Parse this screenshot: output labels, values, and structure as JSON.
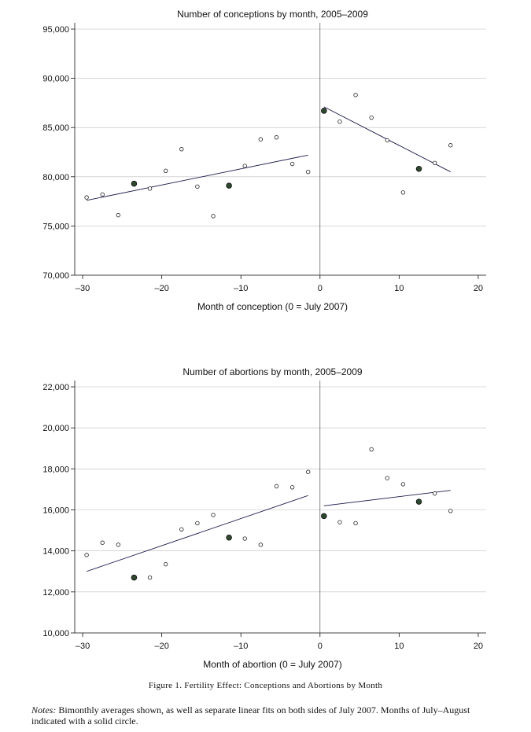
{
  "chart_data": [
    {
      "type": "scatter",
      "title": "Number of conceptions by month, 2005–2009",
      "xlabel": "Month of conception (0 = July 2007)",
      "ylabel": "",
      "xlim": [
        -31,
        21
      ],
      "ylim": [
        70000,
        95000
      ],
      "xticks": [
        -30,
        -20,
        -10,
        0,
        10,
        20
      ],
      "xtick_labels": [
        "–30",
        "–20",
        "–10",
        "0",
        "10",
        "20"
      ],
      "yticks": [
        70000,
        75000,
        80000,
        85000,
        90000,
        95000
      ],
      "ytick_labels": [
        "70,000",
        "75,000",
        "80,000",
        "85,000",
        "90,000",
        "95,000"
      ],
      "grid": true,
      "vline_x": 0,
      "points": [
        {
          "x": -29.5,
          "y": 77900,
          "filled": false
        },
        {
          "x": -27.5,
          "y": 78200,
          "filled": false
        },
        {
          "x": -25.5,
          "y": 76100,
          "filled": false
        },
        {
          "x": -23.5,
          "y": 79300,
          "filled": true
        },
        {
          "x": -21.5,
          "y": 78800,
          "filled": false
        },
        {
          "x": -19.5,
          "y": 80600,
          "filled": false
        },
        {
          "x": -17.5,
          "y": 82800,
          "filled": false
        },
        {
          "x": -15.5,
          "y": 79000,
          "filled": false
        },
        {
          "x": -13.5,
          "y": 76000,
          "filled": false
        },
        {
          "x": -11.5,
          "y": 79100,
          "filled": true
        },
        {
          "x": -9.5,
          "y": 81100,
          "filled": false
        },
        {
          "x": -7.5,
          "y": 83800,
          "filled": false
        },
        {
          "x": -5.5,
          "y": 84000,
          "filled": false
        },
        {
          "x": -3.5,
          "y": 81300,
          "filled": false
        },
        {
          "x": -1.5,
          "y": 80500,
          "filled": false
        },
        {
          "x": 0.5,
          "y": 86700,
          "filled": true
        },
        {
          "x": 2.5,
          "y": 85600,
          "filled": false
        },
        {
          "x": 4.5,
          "y": 88300,
          "filled": false
        },
        {
          "x": 6.5,
          "y": 86000,
          "filled": false
        },
        {
          "x": 8.5,
          "y": 83700,
          "filled": false
        },
        {
          "x": 10.5,
          "y": 78400,
          "filled": false
        },
        {
          "x": 12.5,
          "y": 80800,
          "filled": true
        },
        {
          "x": 14.5,
          "y": 81400,
          "filled": false
        },
        {
          "x": 16.5,
          "y": 83200,
          "filled": false
        }
      ],
      "fits": [
        {
          "x": [
            -29.5,
            -1.5
          ],
          "y": [
            77600,
            82200
          ]
        },
        {
          "x": [
            0.5,
            16.5
          ],
          "y": [
            87100,
            80500
          ]
        }
      ]
    },
    {
      "type": "scatter",
      "title": "Number of abortions by month, 2005–2009",
      "xlabel": "Month of abortion (0 = July 2007)",
      "ylabel": "",
      "xlim": [
        -31,
        21
      ],
      "ylim": [
        10000,
        22000
      ],
      "xticks": [
        -30,
        -20,
        -10,
        0,
        10,
        20
      ],
      "xtick_labels": [
        "–30",
        "–20",
        "–10",
        "0",
        "10",
        "20"
      ],
      "yticks": [
        10000,
        12000,
        14000,
        16000,
        18000,
        20000,
        22000
      ],
      "ytick_labels": [
        "10,000",
        "12,000",
        "14,000",
        "16,000",
        "18,000",
        "20,000",
        "22,000"
      ],
      "grid": true,
      "vline_x": 0,
      "points": [
        {
          "x": -29.5,
          "y": 13800,
          "filled": false
        },
        {
          "x": -27.5,
          "y": 14400,
          "filled": false
        },
        {
          "x": -25.5,
          "y": 14300,
          "filled": false
        },
        {
          "x": -23.5,
          "y": 12700,
          "filled": true
        },
        {
          "x": -21.5,
          "y": 12700,
          "filled": false
        },
        {
          "x": -19.5,
          "y": 13350,
          "filled": false
        },
        {
          "x": -17.5,
          "y": 15050,
          "filled": false
        },
        {
          "x": -15.5,
          "y": 15350,
          "filled": false
        },
        {
          "x": -13.5,
          "y": 15750,
          "filled": false
        },
        {
          "x": -11.5,
          "y": 14650,
          "filled": true
        },
        {
          "x": -9.5,
          "y": 14600,
          "filled": false
        },
        {
          "x": -7.5,
          "y": 14300,
          "filled": false
        },
        {
          "x": -5.5,
          "y": 17150,
          "filled": false
        },
        {
          "x": -3.5,
          "y": 17100,
          "filled": false
        },
        {
          "x": -1.5,
          "y": 17850,
          "filled": false
        },
        {
          "x": 0.5,
          "y": 15700,
          "filled": true
        },
        {
          "x": 2.5,
          "y": 15400,
          "filled": false
        },
        {
          "x": 4.5,
          "y": 15350,
          "filled": false
        },
        {
          "x": 6.5,
          "y": 18950,
          "filled": false
        },
        {
          "x": 8.5,
          "y": 17550,
          "filled": false
        },
        {
          "x": 10.5,
          "y": 17250,
          "filled": false
        },
        {
          "x": 12.5,
          "y": 16400,
          "filled": true
        },
        {
          "x": 14.5,
          "y": 16800,
          "filled": false
        },
        {
          "x": 16.5,
          "y": 15950,
          "filled": false
        }
      ],
      "fits": [
        {
          "x": [
            -29.5,
            -1.5
          ],
          "y": [
            13000,
            16700
          ]
        },
        {
          "x": [
            0.5,
            16.5
          ],
          "y": [
            16200,
            16950
          ]
        }
      ]
    }
  ],
  "figure": {
    "caption": "Figure 1. Fertility Effect: Conceptions and Abortions by Month",
    "notes_label": "Notes:",
    "notes_text": "Bimonthly averages shown, as well as separate linear fits on both sides of July 2007. Months of July–August indicated with a solid circle."
  }
}
